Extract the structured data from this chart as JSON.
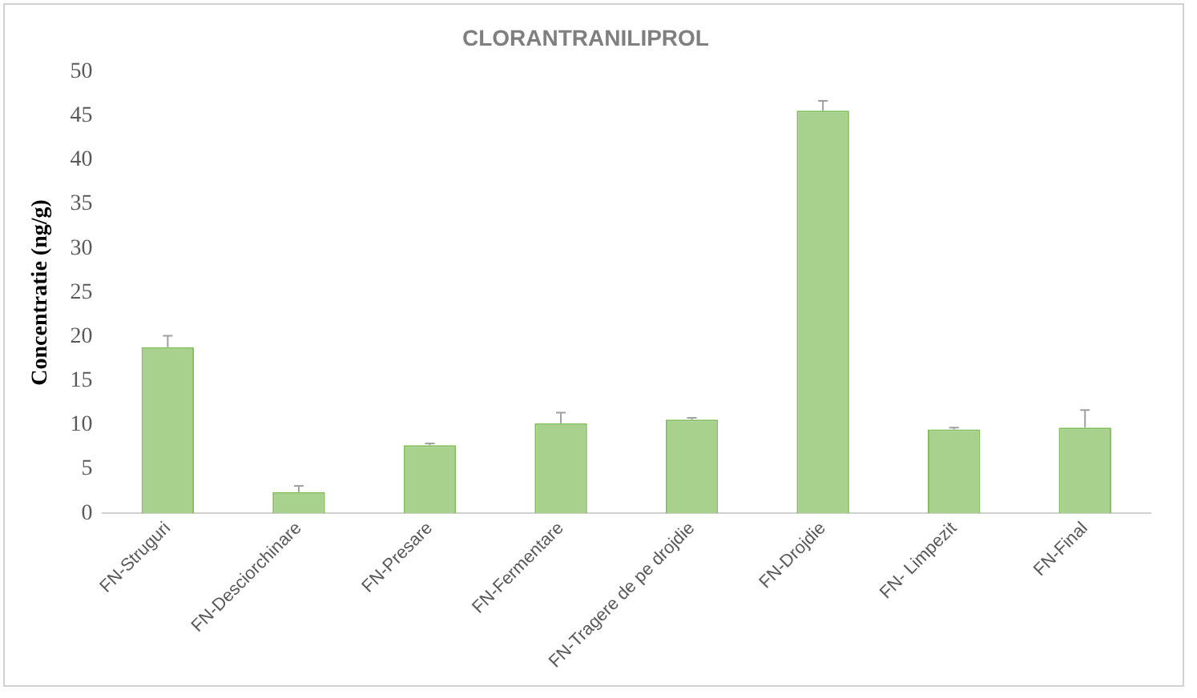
{
  "chart_data": {
    "type": "bar",
    "title": "CLORANTRANILIPROL",
    "ylabel": "Concentratie (ng/g)",
    "categories": [
      "FN-Struguri",
      "FN-Desciorchinare",
      "FN-Presare",
      "FN-Fermentare",
      "FN-Tragere de pe drojdie",
      "FN-Drojdie",
      "FN- Limpezit",
      "FN-Final"
    ],
    "values": [
      18.8,
      2.4,
      7.7,
      10.2,
      10.6,
      45.6,
      9.5,
      9.7
    ],
    "errors": [
      [
        18.8,
        20.1
      ],
      [
        2.4,
        3.1
      ],
      [
        7.7,
        7.9
      ],
      [
        10.2,
        11.4
      ],
      [
        10.6,
        10.8
      ],
      [
        45.6,
        46.7
      ],
      [
        9.5,
        9.7
      ],
      [
        9.7,
        11.7
      ]
    ],
    "color": "#a9d18e",
    "ylim": [
      0,
      50
    ],
    "yticks": [
      0,
      5,
      10,
      15,
      20,
      25,
      30,
      35,
      40,
      45,
      50
    ],
    "grid": false,
    "legend": false
  }
}
